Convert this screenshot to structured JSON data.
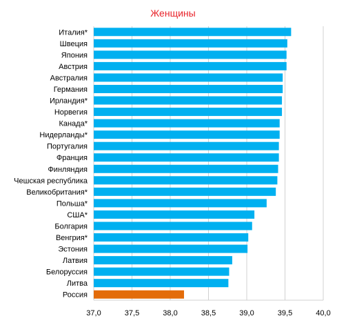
{
  "chart_data": {
    "type": "bar",
    "orientation": "horizontal",
    "title": "Женщины",
    "categories": [
      "Италия*",
      "Швеция",
      "Япония",
      "Австрия",
      "Австралия",
      "Германия",
      "Ирландия*",
      "Норвегия",
      "Канада*",
      "Нидерланды*",
      "Португалия",
      "Франция",
      "Финляндия",
      "Чешская республика",
      "Великобритания*",
      "Польша*",
      "США*",
      "Болгария",
      "Венгрия*",
      "Эстония",
      "Латвия",
      "Белоруссия",
      "Литва",
      "Россия"
    ],
    "values": [
      39.58,
      39.53,
      39.52,
      39.52,
      39.47,
      39.47,
      39.46,
      39.46,
      39.43,
      39.43,
      39.42,
      39.42,
      39.41,
      39.4,
      39.38,
      39.26,
      39.1,
      39.07,
      39.02,
      39.01,
      38.81,
      38.77,
      38.76,
      38.18
    ],
    "highlight": "Россия",
    "xlim": [
      37.0,
      40.0
    ],
    "xticks": [
      "37,0",
      "37,5",
      "38,0",
      "38,5",
      "39,0",
      "39,5",
      "40,0"
    ],
    "xtick_values": [
      37.0,
      37.5,
      38.0,
      38.5,
      39.0,
      39.5,
      40.0
    ],
    "grid": true,
    "colors": {
      "bar": "#00b0f0",
      "highlight": "#e36c0a",
      "grid": "#d0d0d0",
      "title": "#e8232a"
    }
  }
}
